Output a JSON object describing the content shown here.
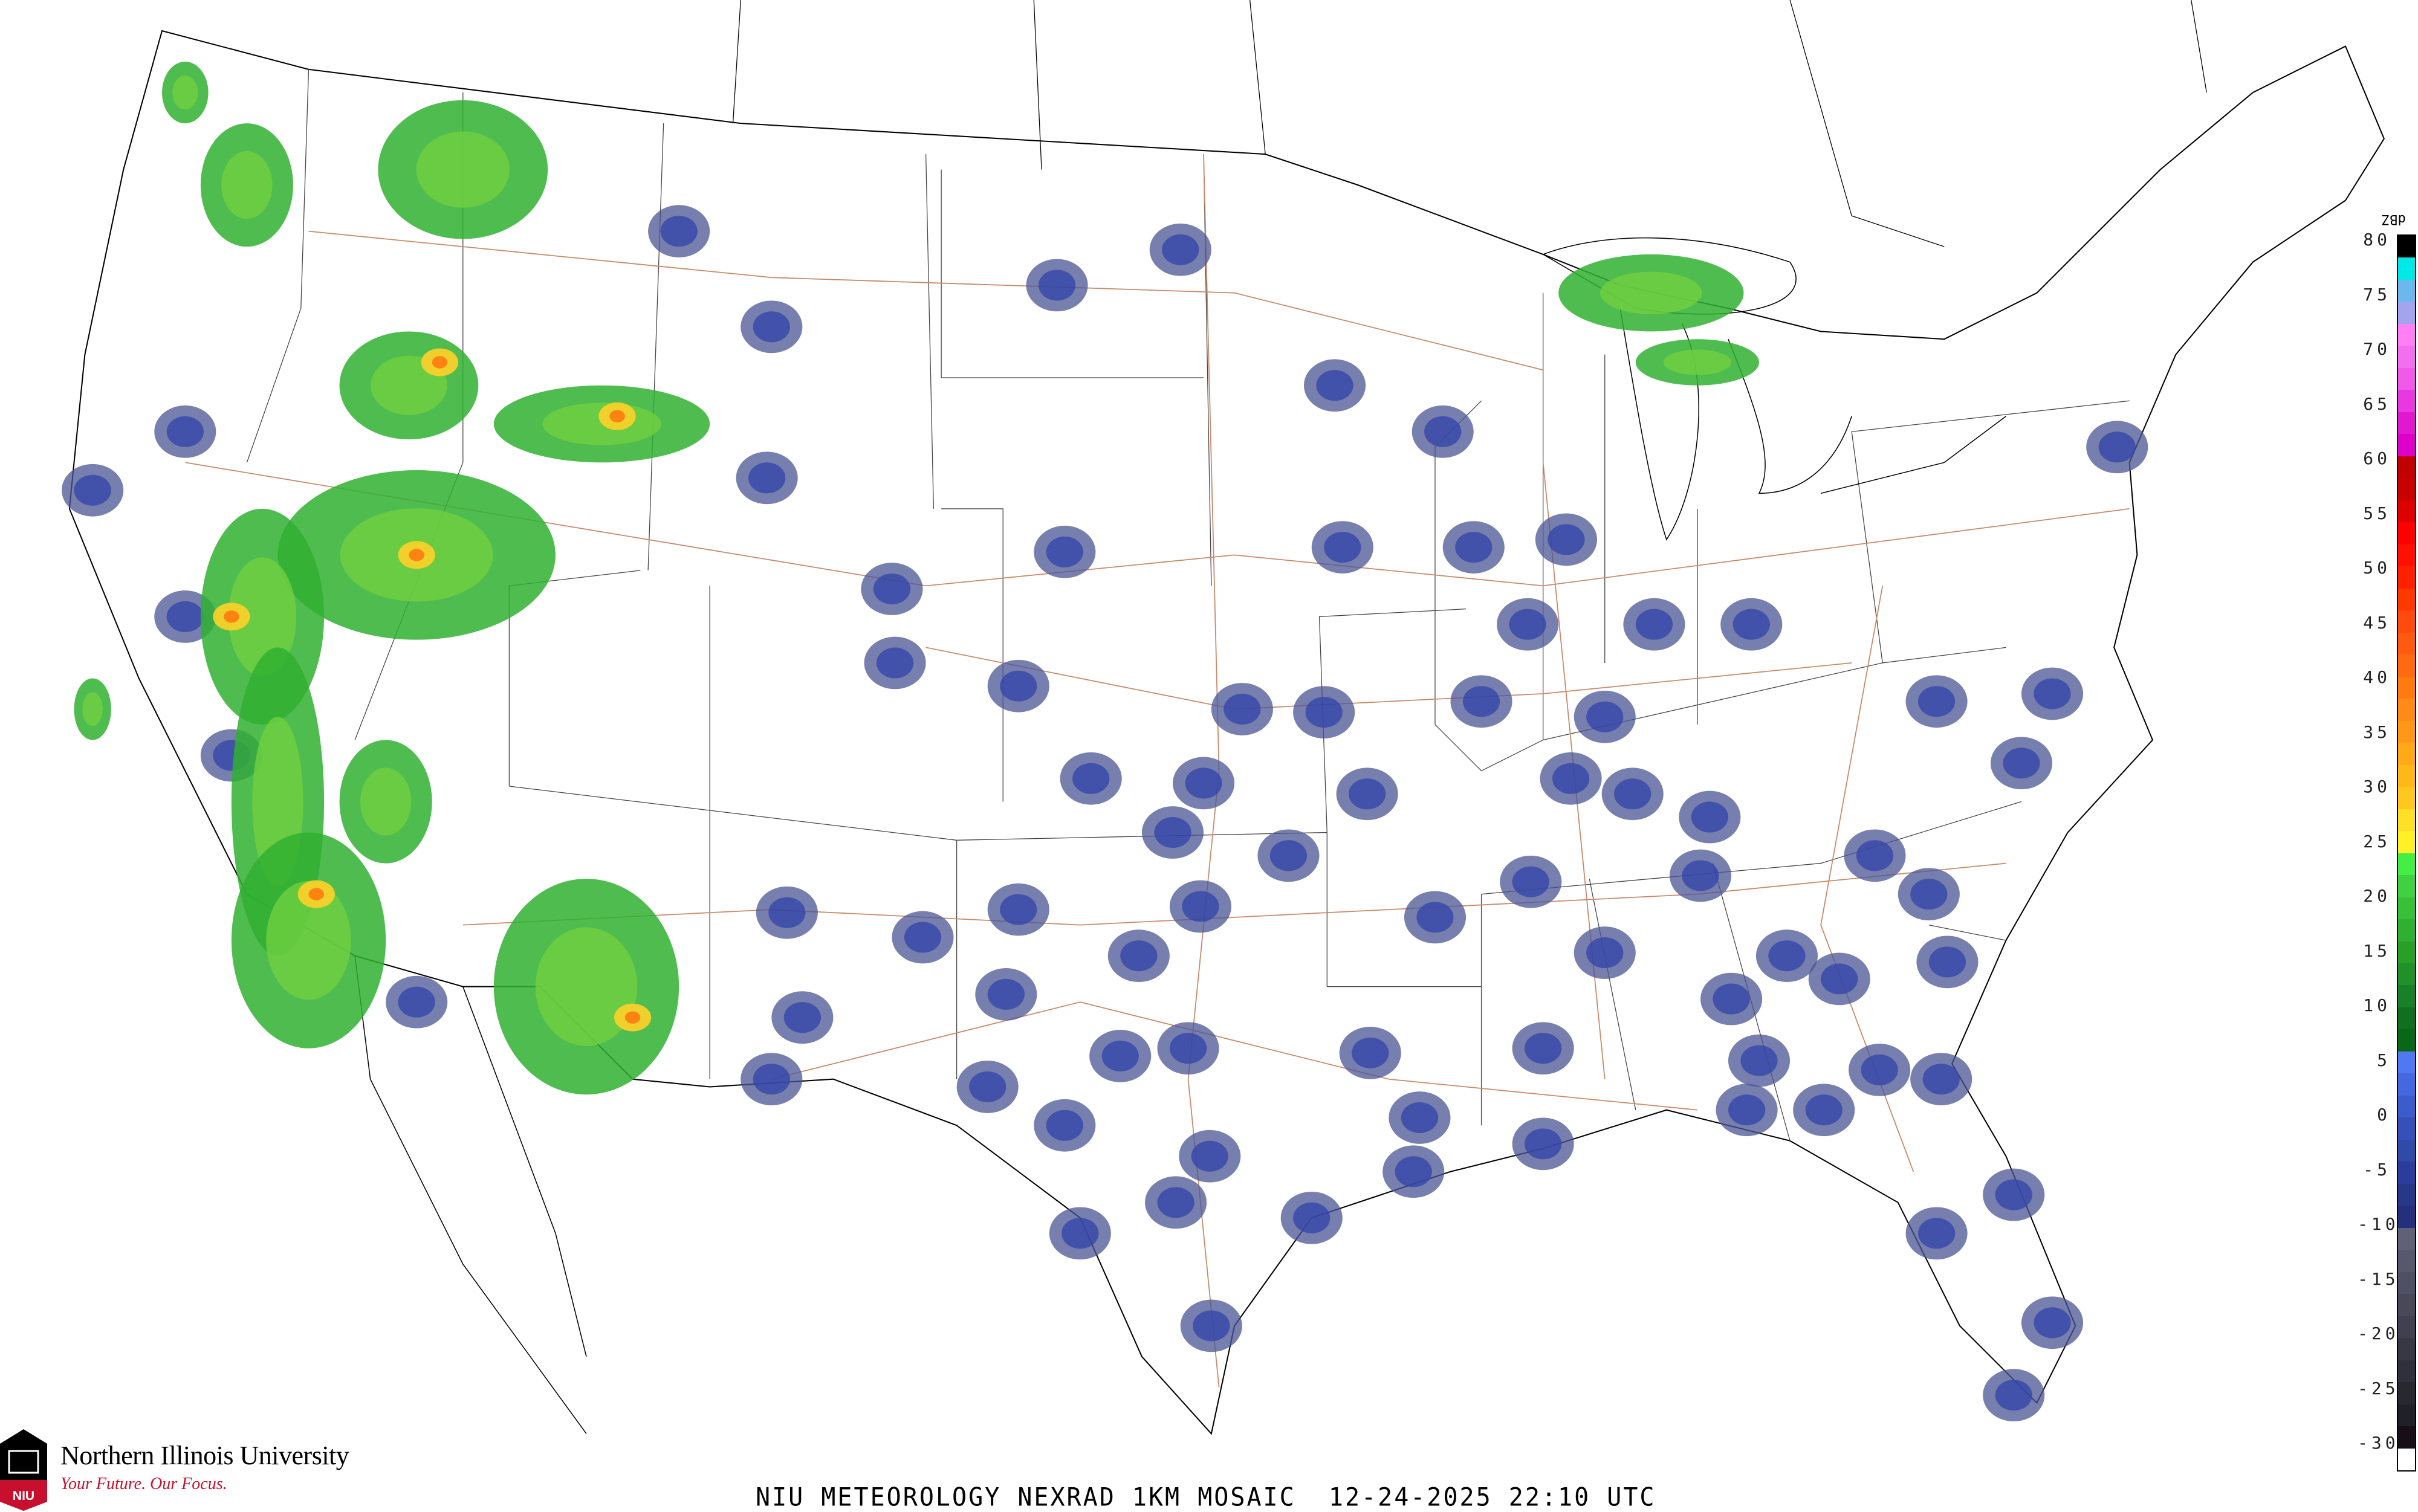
{
  "map": {
    "title": "NIU METEOROLOGY NEXRAD 1KM MOSAIC  12-24-2025 22:10 UTC",
    "product": "NEXRAD 1KM MOSAIC",
    "date": "12-24-2025",
    "time": "22:10 UTC",
    "region": "Contiguous United States"
  },
  "branding": {
    "name": "Northern Illinois University",
    "tagline": "Your Future. Our Focus.",
    "shield_text": "NIU",
    "brand_color": "#c8102e"
  },
  "legend": {
    "unit": "dBZ",
    "ticks": [
      "80",
      "75",
      "70",
      "65",
      "60",
      "55",
      "50",
      "45",
      "40",
      "35",
      "30",
      "25",
      "20",
      "15",
      "10",
      "5",
      "0",
      "-5",
      "-10",
      "-15",
      "-20",
      "-25",
      "-30"
    ],
    "range": [
      -30,
      80
    ],
    "colors_top_to_bottom": [
      "#000000",
      "#00e8e8",
      "#6ab8ee",
      "#a4a4ee",
      "#ff80f4",
      "#f070f0",
      "#f05ae8",
      "#e838e0",
      "#e018d0",
      "#dc00c8",
      "#c00000",
      "#c80000",
      "#dc0000",
      "#ff0000",
      "#ff1000",
      "#ff2000",
      "#ff3800",
      "#ff4a10",
      "#ff5a10",
      "#ff6a10",
      "#ff7a10",
      "#ff8a18",
      "#ff9818",
      "#ffa818",
      "#ffb818",
      "#ffc820",
      "#ffe028",
      "#fff028",
      "#44ee44",
      "#40d040",
      "#38c038",
      "#30b030",
      "#28a028",
      "#209028",
      "#188028",
      "#107020",
      "#086818",
      "#5078f0",
      "#4468e0",
      "#3c5ccc",
      "#3650b8",
      "#304aa8",
      "#2c3c9c",
      "#283888",
      "#24307c",
      "#606078",
      "#58586c",
      "#505064",
      "#484858",
      "#404050",
      "#383844",
      "#30303c",
      "#282830",
      "#202028",
      "#180e18",
      "#ffffff"
    ]
  }
}
